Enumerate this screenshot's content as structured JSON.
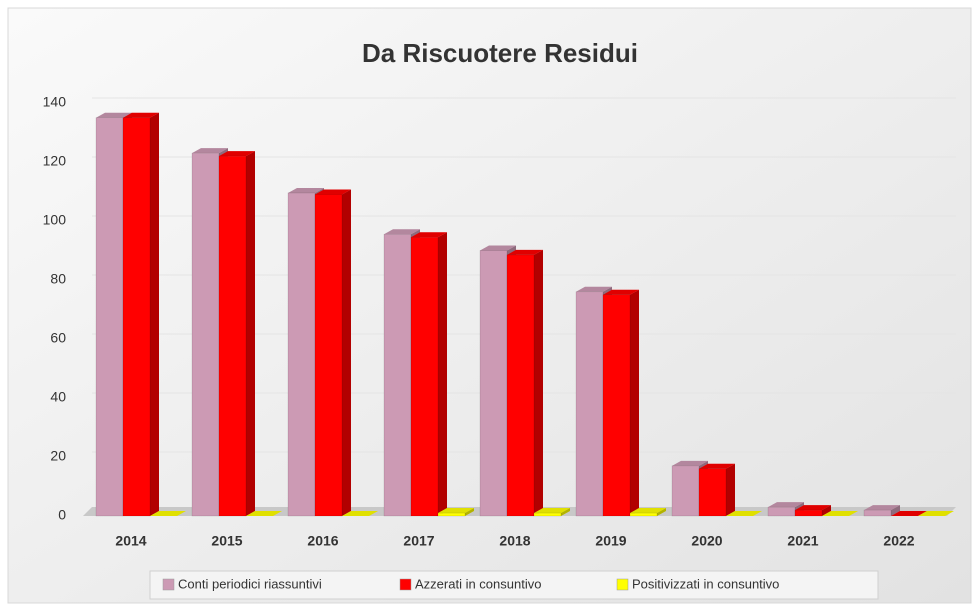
{
  "chart_data": {
    "type": "bar3d",
    "title": "Da Riscuotere Residui",
    "categories": [
      "2014",
      "2015",
      "2016",
      "2017",
      "2018",
      "2019",
      "2020",
      "2021",
      "2022"
    ],
    "series": [
      {
        "name": "Conti periodici riassuntivi",
        "color": "#cc9ab4",
        "values": [
          135,
          123,
          109.5,
          95.5,
          90,
          76,
          17,
          3,
          2
        ]
      },
      {
        "name": "Azzerati in consuntivo",
        "color": "#ff0000",
        "values": [
          135,
          122,
          109,
          94.5,
          88.5,
          75,
          16,
          2,
          0
        ]
      },
      {
        "name": "Positivizzati in consuntivo",
        "color": "#ffff00",
        "values": [
          0,
          0,
          0,
          1,
          1,
          1,
          0,
          0,
          0
        ]
      }
    ],
    "ylim": [
      0,
      140
    ],
    "yticks": [
      0,
      20,
      40,
      60,
      80,
      100,
      120,
      140
    ],
    "grid": true,
    "legend": "bottom"
  }
}
